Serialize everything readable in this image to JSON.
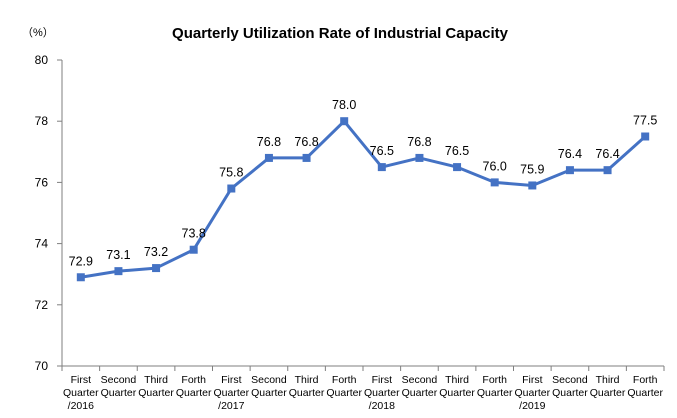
{
  "chart_data": {
    "type": "line",
    "title": "Quarterly Utilization Rate of Industrial Capacity",
    "unit_label": "（%）",
    "xlabel": "",
    "ylabel": "",
    "ylim": [
      70,
      80
    ],
    "yticks": [
      70,
      72,
      74,
      76,
      78,
      80
    ],
    "grid": false,
    "legend": "none",
    "color": "#4472C4",
    "categories": [
      [
        "First",
        "Quarter",
        "/2016"
      ],
      [
        "Second",
        "Quarter"
      ],
      [
        "Third",
        "Quarter"
      ],
      [
        "Forth",
        "Quarter"
      ],
      [
        "First",
        "Quarter",
        "/2017"
      ],
      [
        "Second",
        "Quarter"
      ],
      [
        "Third",
        "Quarter"
      ],
      [
        "Forth",
        "Quarter"
      ],
      [
        "First",
        "Quarter",
        "/2018"
      ],
      [
        "Second",
        "Quarter"
      ],
      [
        "Third",
        "Quarter"
      ],
      [
        "Forth",
        "Quarter"
      ],
      [
        "First",
        "Quarter",
        "/2019"
      ],
      [
        "Second",
        "Quarter"
      ],
      [
        "Third",
        "Quarter"
      ],
      [
        "Forth",
        "Quarter"
      ]
    ],
    "series": [
      {
        "values": [
          72.9,
          73.1,
          73.2,
          73.8,
          75.8,
          76.8,
          76.8,
          78.0,
          76.5,
          76.8,
          76.5,
          76.0,
          75.9,
          76.4,
          76.4,
          77.5
        ],
        "labels": [
          "72.9",
          "73.1",
          "73.2",
          "73.8",
          "75.8",
          "76.8",
          "76.8",
          "78.0",
          "76.5",
          "76.8",
          "76.5",
          "76.0",
          "75.9",
          "76.4",
          "76.4",
          "77.5"
        ]
      }
    ]
  }
}
